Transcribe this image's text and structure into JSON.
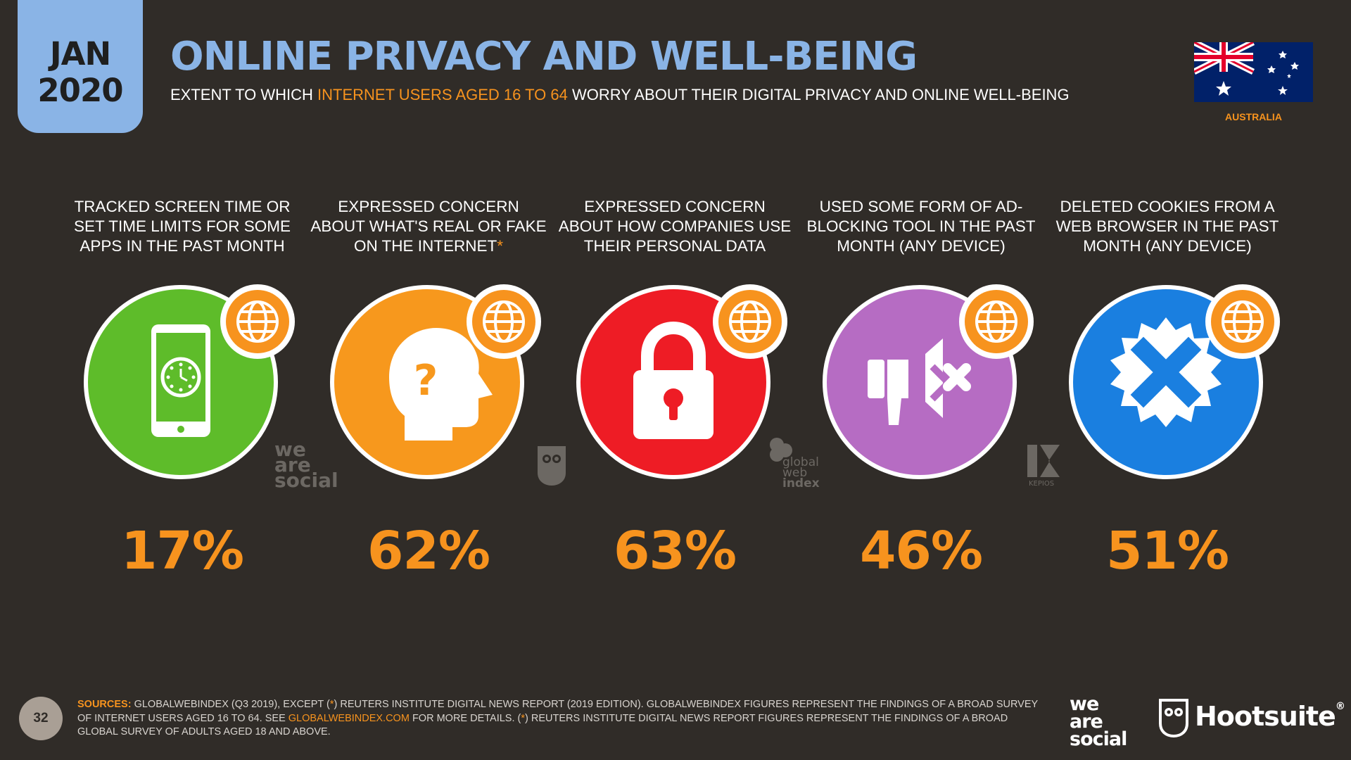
{
  "header": {
    "month": "JAN",
    "year": "2020",
    "title": "ONLINE PRIVACY AND WELL-BEING",
    "subtitle_pre": "EXTENT TO WHICH ",
    "subtitle_highlight": "INTERNET USERS AGED 16 TO 64",
    "subtitle_post": " WORRY ABOUT THEIR DIGITAL PRIVACY AND ONLINE WELL-BEING",
    "country": "AUSTRALIA"
  },
  "metrics": [
    {
      "label": "TRACKED SCREEN TIME OR SET TIME LIMITS FOR SOME APPS IN THE PAST MONTH",
      "asterisk": "",
      "value": "17%",
      "color": "#5ebc2a",
      "icon": "phone-clock-icon"
    },
    {
      "label": "EXPRESSED CONCERN ABOUT WHAT'S REAL OR FAKE ON THE INTERNET",
      "asterisk": "*",
      "value": "62%",
      "color": "#f7981d",
      "icon": "head-question-icon"
    },
    {
      "label": "EXPRESSED CONCERN ABOUT HOW COMPANIES USE THEIR PERSONAL DATA",
      "asterisk": "",
      "value": "63%",
      "color": "#ee1c25",
      "icon": "padlock-icon"
    },
    {
      "label": "USED SOME FORM OF AD-BLOCKING TOOL IN THE PAST MONTH (ANY DEVICE)",
      "asterisk": "",
      "value": "46%",
      "color": "#b66cc3",
      "icon": "ad-block-icon"
    },
    {
      "label": "DELETED COOKIES FROM A WEB BROWSER IN THE PAST MONTH (ANY DEVICE)",
      "asterisk": "",
      "value": "51%",
      "color": "#1a7fe0",
      "icon": "cookie-delete-icon"
    }
  ],
  "watermarks": {
    "was_1": "we",
    "was_2": "are",
    "was_3": "social",
    "gwi_1": "global",
    "gwi_2": "web",
    "gwi_3": "index",
    "kepios": "KEPIOS"
  },
  "footer": {
    "page_number": "32",
    "sources_head": "SOURCES:",
    "sources_a": " GLOBALWEBINDEX (Q3 2019), EXCEPT (",
    "sources_ast1": "*",
    "sources_b": ") REUTERS INSTITUTE DIGITAL NEWS REPORT (2019 EDITION). GLOBALWEBINDEX FIGURES REPRESENT THE FINDINGS OF A BROAD SURVEY OF INTERNET USERS AGED 16 TO 64. SEE ",
    "sources_link": "GLOBALWEBINDEX.COM",
    "sources_c": " FOR MORE DETAILS. (",
    "sources_ast2": "*",
    "sources_d": ") REUTERS INSTITUTE DIGITAL NEWS REPORT FIGURES REPRESENT THE FINDINGS OF A BROAD GLOBAL SURVEY OF ADULTS AGED 18 AND ABOVE.",
    "logo_was_1": "we",
    "logo_was_2": "are",
    "logo_was_3": "social",
    "logo_hootsuite": "Hootsuite",
    "logo_registered": "®"
  }
}
